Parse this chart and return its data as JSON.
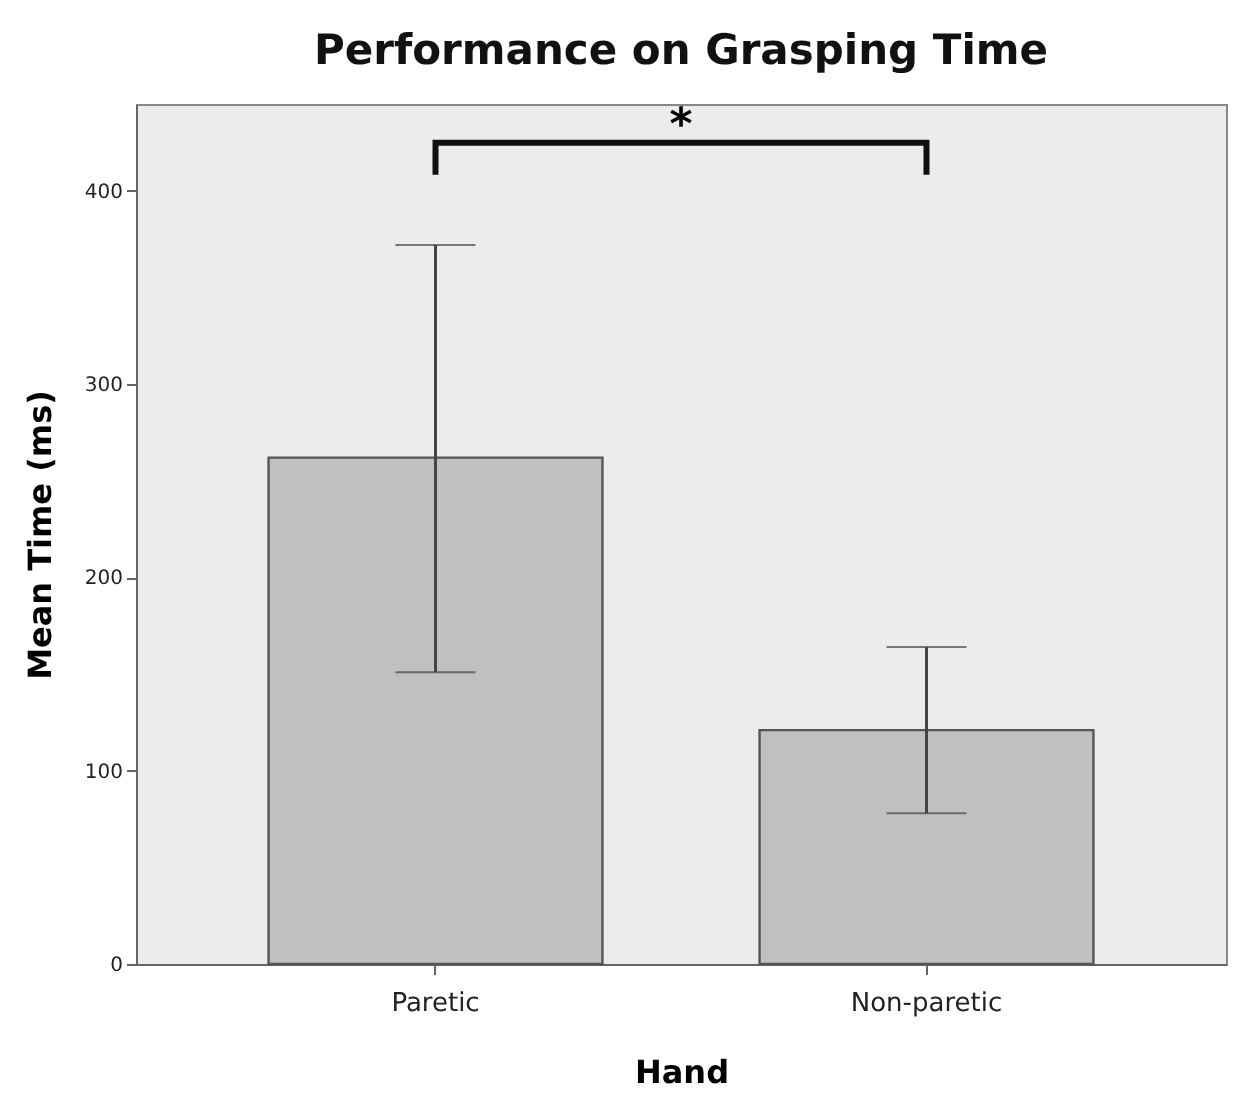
{
  "chart_data": {
    "type": "bar",
    "title": "Performance on Grasping Time",
    "xlabel": "Hand",
    "ylabel": "Mean Time (ms)",
    "categories": [
      "Paretic",
      "Non-paretic"
    ],
    "values": [
      262,
      121
    ],
    "errors": [
      [
        151,
        372
      ],
      [
        78,
        164
      ]
    ],
    "color": "#c0c0c0",
    "ylim": [
      0,
      445
    ],
    "yticks": [
      0,
      100,
      200,
      300,
      400
    ],
    "annotations": [
      "*"
    ]
  }
}
